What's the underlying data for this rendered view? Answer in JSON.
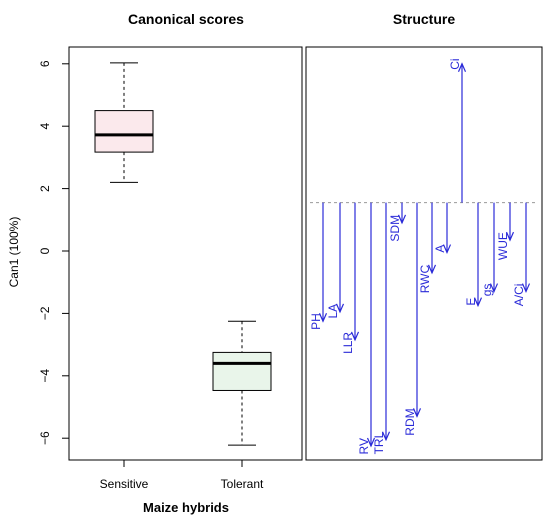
{
  "chart_data": [
    {
      "type": "boxplot",
      "title": "Canonical scores",
      "xlabel": "Maize hybrids",
      "ylabel": "Can1 (100%)",
      "ylim": [
        -6.7,
        6.3
      ],
      "yticks": [
        -6,
        -4,
        -2,
        0,
        2,
        4,
        6
      ],
      "categories": [
        "Sensitive",
        "Tolerant"
      ],
      "boxes": [
        {
          "name": "Sensitive",
          "whisker_low": 2.2,
          "q1": 3.17,
          "median": 3.72,
          "q3": 4.5,
          "whisker_high": 6.03,
          "fill": "#fbe9ec"
        },
        {
          "name": "Tolerant",
          "whisker_low": -6.22,
          "q1": -4.47,
          "median": -3.6,
          "q3": -3.25,
          "whisker_high": -2.25,
          "fill": "#e9f5ea"
        }
      ]
    },
    {
      "type": "arrows",
      "title": "Structure",
      "ylim": [
        -6.7,
        6.3
      ],
      "baseline": 1.55,
      "arrow_color": "#2b2bd8",
      "variables": [
        {
          "label": "PH",
          "loading": -2.25
        },
        {
          "label": "LA",
          "loading": -1.95
        },
        {
          "label": "LLR",
          "loading": -2.85
        },
        {
          "label": "RV",
          "loading": -6.25
        },
        {
          "label": "TRL",
          "loading": -6.05
        },
        {
          "label": "SDM",
          "loading": 0.9
        },
        {
          "label": "RDM",
          "loading": -5.3
        },
        {
          "label": "RWC",
          "loading": -0.7
        },
        {
          "label": "A",
          "loading": -0.05
        },
        {
          "label": "Ci",
          "loading": 6.0
        },
        {
          "label": "E",
          "loading": -1.75
        },
        {
          "label": "gs",
          "loading": -1.3
        },
        {
          "label": "WUE",
          "loading": 0.35
        },
        {
          "label": "A/Ci",
          "loading": -1.3
        }
      ]
    }
  ]
}
